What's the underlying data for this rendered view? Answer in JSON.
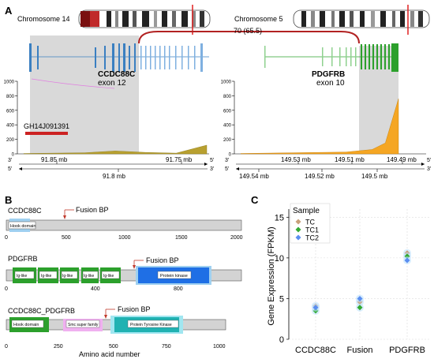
{
  "panels": {
    "a_label": "A",
    "b_label": "B",
    "c_label": "C"
  },
  "panel_a": {
    "left_chrom": "Chromosome 14",
    "right_chrom": "Chromosome 5",
    "junction_reads": "70 (65.5)",
    "left_gene": "CCDC88C",
    "left_exon": "exon 12",
    "right_gene": "PDGFRB",
    "right_exon": "exon 10",
    "enhancer_label": "GH14J091391",
    "strand_marks": {
      "top_3": "3'",
      "top_5": "5'",
      "bottom_5": "5'",
      "bottom_3": "3'"
    },
    "colors": {
      "left_gene": "#3a7fc1",
      "right_gene": "#2ca02c",
      "arc": "#b22222",
      "coverage_left": "#b8a030",
      "coverage_right": "#f5a623",
      "shade": "#d9d9d9"
    }
  },
  "coverage_chart_left": {
    "type": "area",
    "x": [
      91.86,
      91.84,
      91.82,
      91.8,
      91.78,
      91.76,
      91.74
    ],
    "values": [
      5,
      10,
      15,
      40,
      20,
      10,
      120
    ],
    "yticks": [
      "1000",
      "800",
      "600",
      "400",
      "200",
      "0"
    ],
    "ylim": [
      0,
      1000
    ],
    "xticks_top": [
      "91.85 mb",
      "91.75 mb"
    ],
    "xticks_bottom": [
      "91.8 mb"
    ]
  },
  "coverage_chart_right": {
    "type": "area",
    "x": [
      149.55,
      149.53,
      149.51,
      149.5,
      149.495,
      149.49
    ],
    "values": [
      5,
      15,
      25,
      60,
      150,
      760
    ],
    "yticks": [
      "1000",
      "800",
      "600",
      "400",
      "200",
      "0"
    ],
    "ylim": [
      0,
      1000
    ],
    "xticks_top": [
      "149.53 mb",
      "149.51 mb",
      "149.49 mb"
    ],
    "xticks_bottom": [
      "149.54 mb",
      "149.52 mb",
      "149.5 mb"
    ]
  },
  "panel_b": {
    "fusion_bp": "Fusion BP",
    "xlabel": "Amino acid number",
    "proteins": [
      {
        "name": "CCDC88C",
        "domains": [
          {
            "label": "Hook domain"
          }
        ],
        "ticks": [
          "0",
          "500",
          "1000",
          "1500",
          "2000"
        ]
      },
      {
        "name": "PDGFRB",
        "domains": [
          {
            "label": "Ig-like"
          },
          {
            "label": "Ig-like"
          },
          {
            "label": "Ig-like"
          },
          {
            "label": "Ig-like"
          },
          {
            "label": "Ig-like"
          },
          {
            "label": "Protein kinase"
          }
        ],
        "ticks": [
          "0",
          "400",
          "800"
        ]
      },
      {
        "name": "CCDC88C_PDGFRB",
        "domains": [
          {
            "label": "Hook domain"
          },
          {
            "label": "Smc super family"
          },
          {
            "label": "Protein Tyrosine Kinase"
          }
        ],
        "ticks": [
          "0",
          "250",
          "500",
          "750",
          "1000"
        ]
      }
    ],
    "colors": {
      "domain_green": "#2ca02c",
      "domain_blue": "#1f6fe5",
      "domain_teal": "#20b2b2",
      "domain_pink": "#e070e0",
      "bar": "#d3d3d3",
      "arrow": "#c0392b"
    }
  },
  "chart_data": {
    "type": "scatter",
    "categories": [
      "CCDC88C",
      "Fusion",
      "PDGFRB"
    ],
    "series": [
      {
        "name": "TC",
        "color": "#c8a07a",
        "values": [
          4.1,
          4.6,
          10.6
        ]
      },
      {
        "name": "TC1",
        "color": "#33aa33",
        "values": [
          3.5,
          3.9,
          10.2
        ]
      },
      {
        "name": "TC2",
        "color": "#5a8ef0",
        "values": [
          3.9,
          5.0,
          9.7
        ]
      }
    ],
    "ylabel": "Gene Expression (FPKM)",
    "ylim": [
      0,
      16
    ],
    "yticks": [
      "0",
      "5",
      "10",
      "15"
    ],
    "legend_title": "Sample",
    "legend_position": "top-left",
    "grid": true
  }
}
